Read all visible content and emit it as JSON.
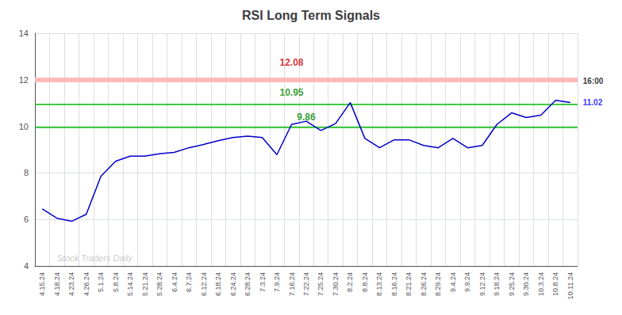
{
  "chart_data": {
    "type": "line",
    "title": "RSI Long Term Signals",
    "categories": [
      "4.15.24",
      "4.18.24",
      "4.23.24",
      "4.26.24",
      "5.1.24",
      "5.8.24",
      "5.14.24",
      "5.21.24",
      "5.28.24",
      "6.4.24",
      "6.7.24",
      "6.12.24",
      "6.18.24",
      "6.24.24",
      "6.28.24",
      "7.3.24",
      "7.9.24",
      "7.16.24",
      "7.22.24",
      "7.25.24",
      "7.30.24",
      "8.2.24",
      "8.8.24",
      "8.13.24",
      "8.16.24",
      "8.21.24",
      "8.26.24",
      "8.29.24",
      "9.4.24",
      "9.9.24",
      "9.12.24",
      "9.18.24",
      "9.25.24",
      "9.30.24",
      "10.3.24",
      "10.8.24",
      "10.11.24"
    ],
    "values": [
      6.45,
      6.05,
      5.92,
      6.22,
      7.85,
      8.5,
      8.72,
      8.72,
      8.82,
      8.88,
      9.08,
      9.22,
      9.38,
      9.52,
      9.58,
      9.52,
      8.78,
      10.08,
      10.22,
      9.82,
      10.12,
      11.02,
      9.48,
      9.08,
      9.42,
      9.42,
      9.18,
      9.08,
      9.48,
      9.08,
      9.18,
      10.08,
      10.58,
      10.38,
      10.48,
      11.12,
      11.02
    ],
    "color": "#0000cc",
    "ylim": [
      4,
      14
    ],
    "yticks": [
      4,
      6,
      8,
      10,
      12,
      14
    ],
    "grid": true,
    "hlines": [
      {
        "value": 12.0,
        "color": "#ffbbbb",
        "line_style": "band"
      },
      {
        "value": 10.95,
        "color": "#00bb00",
        "line_style": "solid"
      },
      {
        "value": 9.95,
        "color": "#00bb00",
        "line_style": "solid"
      }
    ],
    "annotations": [
      {
        "text": "12.08",
        "x": "7.16.24",
        "y": 12.55,
        "color": "#cc0000"
      },
      {
        "text": "10.95",
        "x": "7.16.24",
        "y": 11.25,
        "color": "#008800"
      },
      {
        "text": "9.86",
        "x": "7.22.24",
        "y": 10.2,
        "color": "#008800"
      }
    ],
    "end_labels": [
      {
        "text": "16:00",
        "y": 11.95,
        "color": "#000000"
      },
      {
        "text": "11.02",
        "y": 11.02,
        "color": "#0000ff"
      }
    ],
    "watermark": {
      "text": "Stock Traders Daily",
      "x": "4.18.24",
      "y": 4.15,
      "color": "#bbbbbb"
    }
  }
}
